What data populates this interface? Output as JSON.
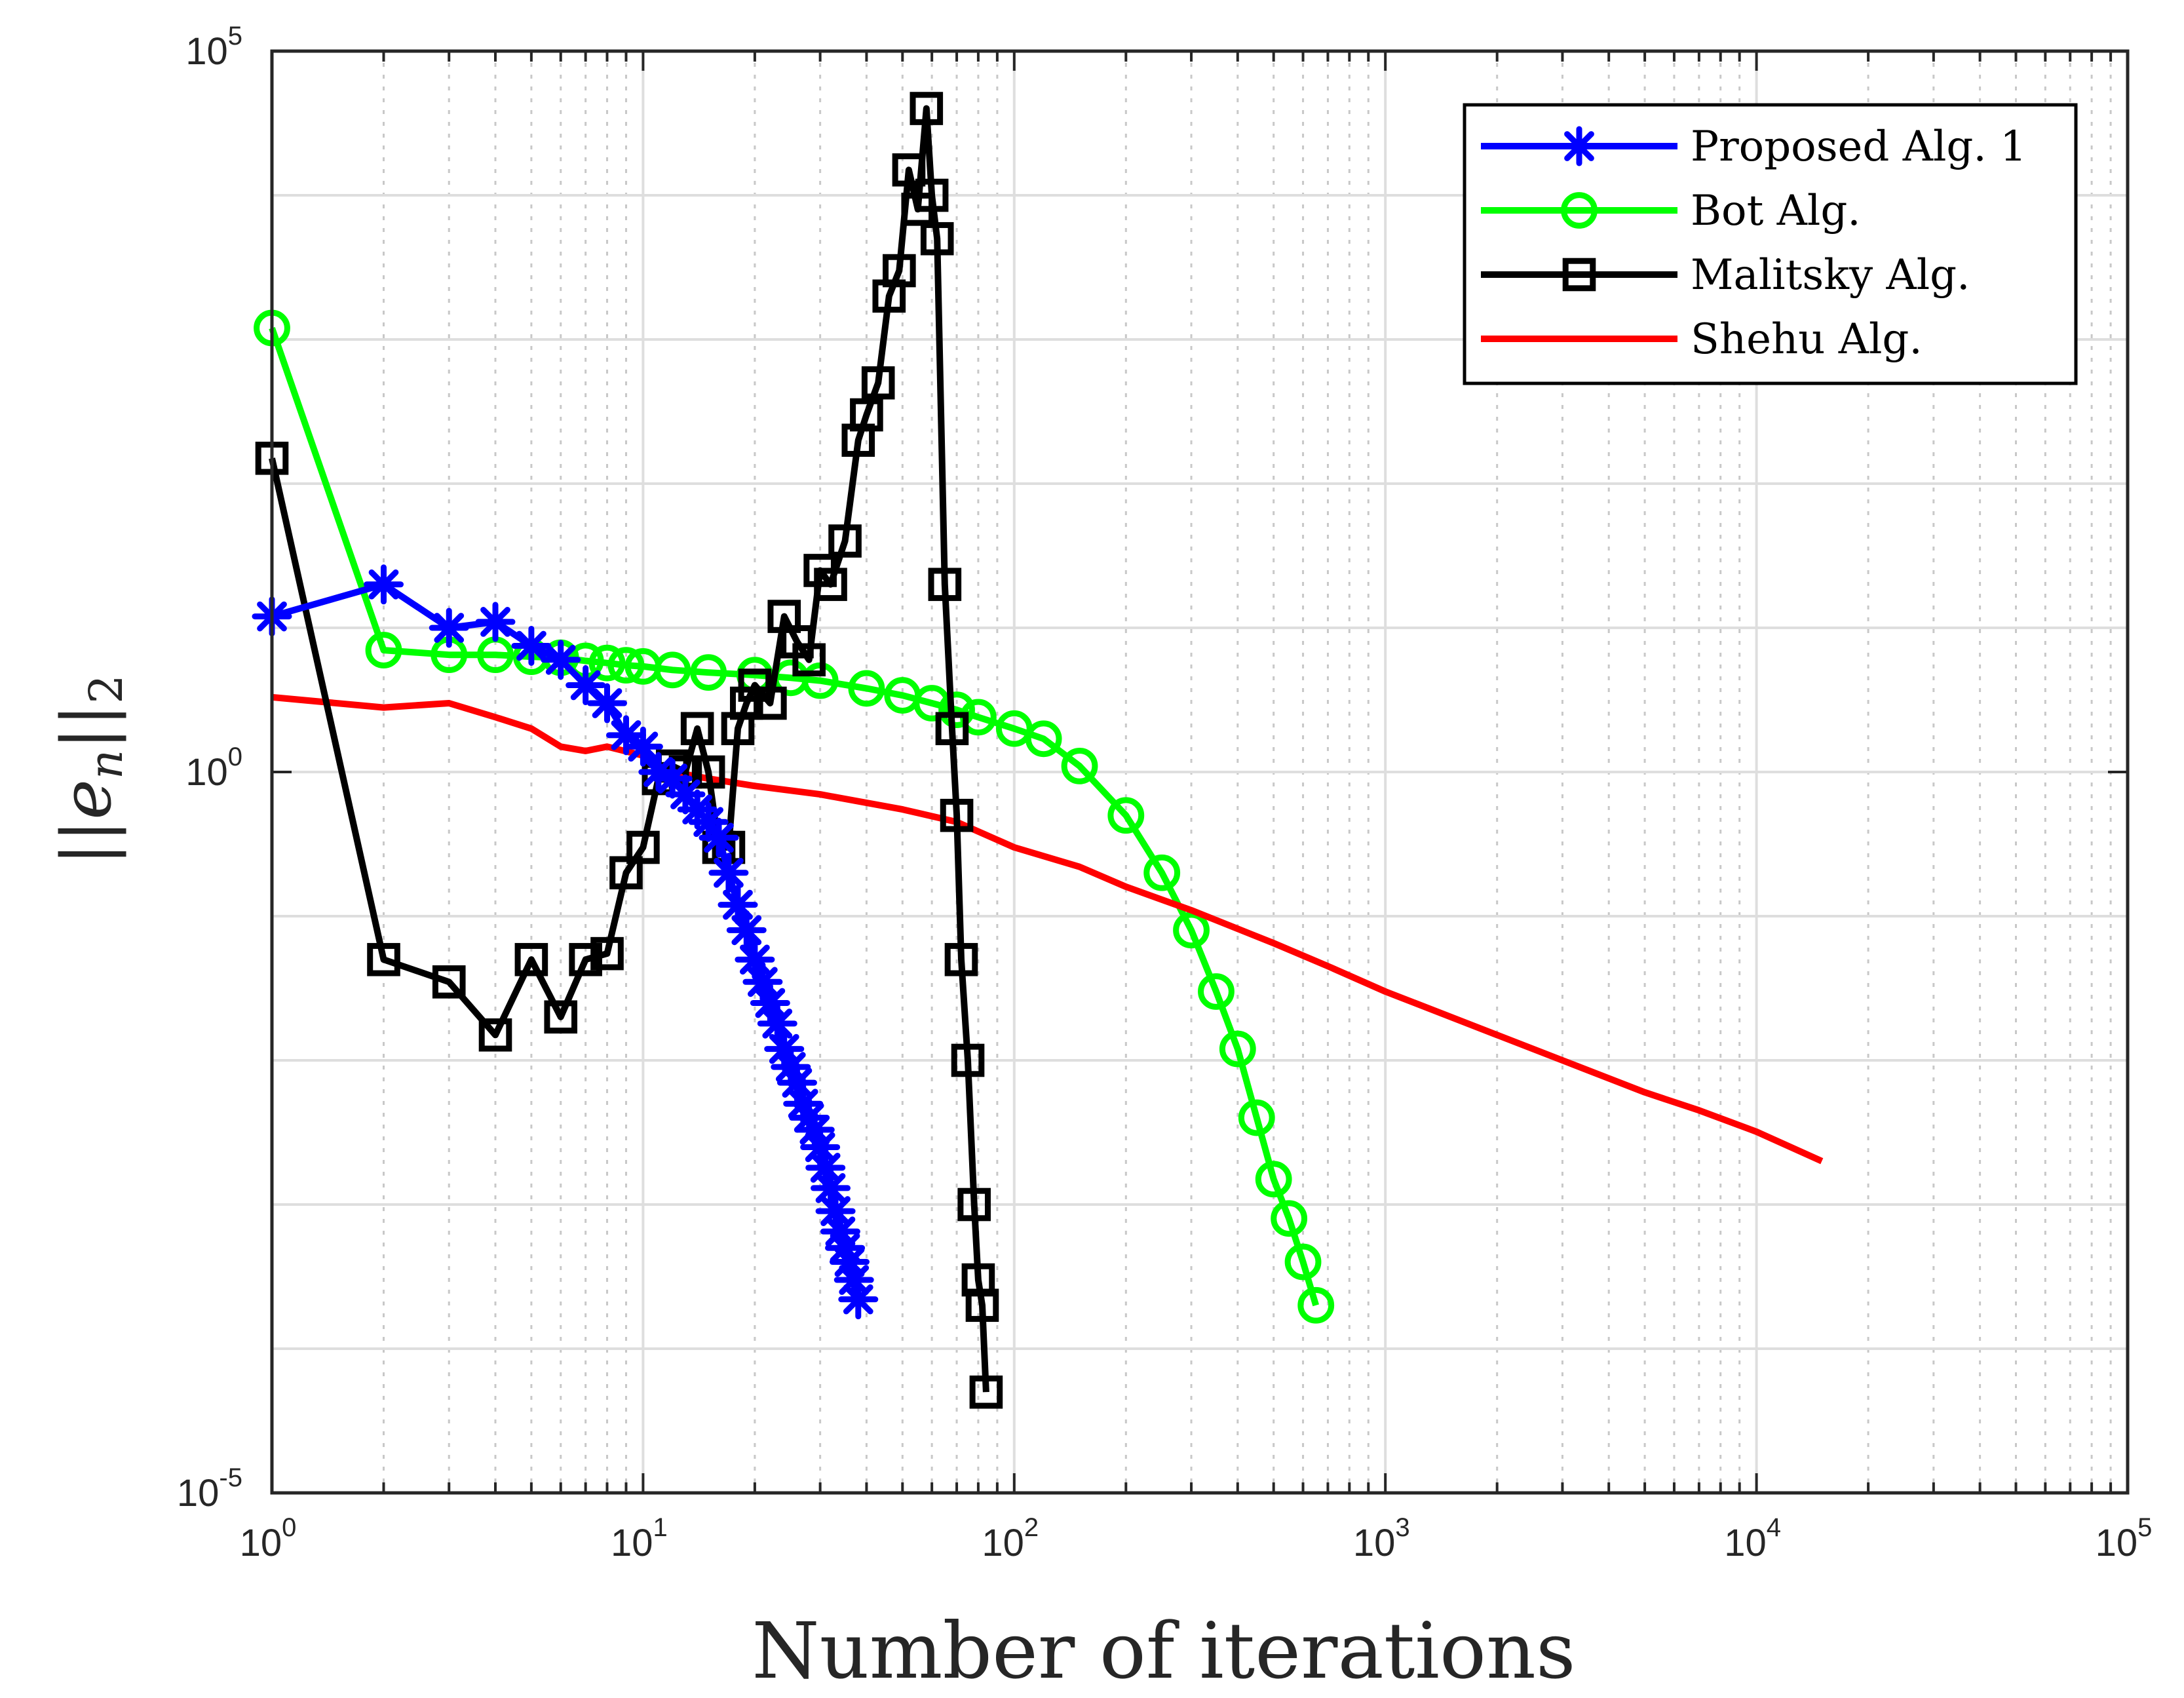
{
  "chart_data": {
    "type": "line",
    "title": "",
    "xlabel": "Number of iterations",
    "ylabel": "||e_n||_2",
    "ylabel_parts": {
      "bars_left": "||",
      "var": "e",
      "sub_n": "n",
      "bars_right": "||",
      "sub_2": "2"
    },
    "xscale": "log",
    "yscale": "log",
    "xlim": [
      1,
      100000
    ],
    "ylim": [
      1e-05,
      100000
    ],
    "grid": true,
    "legend_position": "top-right",
    "x_ticks": [
      {
        "base": "10",
        "exp": "0",
        "value": 1
      },
      {
        "base": "10",
        "exp": "1",
        "value": 10
      },
      {
        "base": "10",
        "exp": "2",
        "value": 100
      },
      {
        "base": "10",
        "exp": "3",
        "value": 1000
      },
      {
        "base": "10",
        "exp": "4",
        "value": 10000
      },
      {
        "base": "10",
        "exp": "5",
        "value": 100000
      }
    ],
    "y_ticks": [
      {
        "base": "10",
        "exp": "-5",
        "value": 1e-05
      },
      {
        "base": "10",
        "exp": "0",
        "value": 1
      },
      {
        "base": "10",
        "exp": "5",
        "value": 100000
      }
    ],
    "series": [
      {
        "name": "Proposed Alg. 1",
        "color": "#0000ff",
        "marker": "asterisk",
        "points": [
          [
            1,
            12
          ],
          [
            2,
            20
          ],
          [
            3,
            10
          ],
          [
            4,
            11
          ],
          [
            5,
            7.5
          ],
          [
            6,
            6
          ],
          [
            7,
            4
          ],
          [
            8,
            3
          ],
          [
            9,
            1.8
          ],
          [
            10,
            1.5
          ],
          [
            11,
            1.0
          ],
          [
            12,
            0.9
          ],
          [
            13,
            0.7
          ],
          [
            14,
            0.55
          ],
          [
            15,
            0.45
          ],
          [
            16,
            0.35
          ],
          [
            17,
            0.2
          ],
          [
            18,
            0.12
          ],
          [
            19,
            0.08
          ],
          [
            20,
            0.05
          ],
          [
            21,
            0.035
          ],
          [
            22,
            0.025
          ],
          [
            23,
            0.018
          ],
          [
            24,
            0.012
          ],
          [
            25,
            0.009
          ],
          [
            26,
            0.007
          ],
          [
            27,
            0.005
          ],
          [
            28,
            0.004
          ],
          [
            29,
            0.0033
          ],
          [
            30,
            0.0025
          ],
          [
            31,
            0.0018
          ],
          [
            32,
            0.0013
          ],
          [
            33,
            0.0009
          ],
          [
            34,
            0.00065
          ],
          [
            35,
            0.0005
          ],
          [
            36,
            0.0004
          ],
          [
            37,
            0.0003
          ],
          [
            38,
            0.00022
          ]
        ]
      },
      {
        "name": "Bot Alg.",
        "color": "#00ff00",
        "marker": "circle",
        "points": [
          [
            1,
            1200
          ],
          [
            2,
            7
          ],
          [
            3,
            6.5
          ],
          [
            4,
            6.5
          ],
          [
            5,
            6.3
          ],
          [
            6,
            6.2
          ],
          [
            7,
            5.9
          ],
          [
            8,
            5.7
          ],
          [
            9,
            5.5
          ],
          [
            10,
            5.4
          ],
          [
            12,
            5.1
          ],
          [
            15,
            4.9
          ],
          [
            20,
            4.7
          ],
          [
            25,
            4.5
          ],
          [
            30,
            4.3
          ],
          [
            40,
            3.8
          ],
          [
            50,
            3.4
          ],
          [
            60,
            3.0
          ],
          [
            70,
            2.7
          ],
          [
            80,
            2.4
          ],
          [
            100,
            2.0
          ],
          [
            120,
            1.7
          ],
          [
            150,
            1.1
          ],
          [
            200,
            0.5
          ],
          [
            250,
            0.2
          ],
          [
            300,
            0.08
          ],
          [
            350,
            0.03
          ],
          [
            400,
            0.012
          ],
          [
            450,
            0.004
          ],
          [
            500,
            0.0015
          ],
          [
            550,
            0.0008
          ],
          [
            600,
            0.0004
          ],
          [
            650,
            0.0002
          ]
        ]
      },
      {
        "name": "Malitsky Alg.",
        "color": "#000000",
        "marker": "square",
        "points": [
          [
            1,
            150
          ],
          [
            2,
            0.05
          ],
          [
            3,
            0.035
          ],
          [
            4,
            0.015
          ],
          [
            5,
            0.05
          ],
          [
            6,
            0.02
          ],
          [
            7,
            0.05
          ],
          [
            8,
            0.055
          ],
          [
            9,
            0.2
          ],
          [
            10,
            0.3
          ],
          [
            11,
            0.9
          ],
          [
            12,
            1.1
          ],
          [
            13,
            1.0
          ],
          [
            14,
            2.0
          ],
          [
            15,
            1.0
          ],
          [
            16,
            0.3
          ],
          [
            17,
            0.3
          ],
          [
            18,
            2.0
          ],
          [
            19,
            3.0
          ],
          [
            20,
            4.0
          ],
          [
            22,
            3.0
          ],
          [
            24,
            12
          ],
          [
            26,
            8
          ],
          [
            28,
            6
          ],
          [
            30,
            25
          ],
          [
            32,
            20
          ],
          [
            35,
            40
          ],
          [
            38,
            200
          ],
          [
            40,
            300
          ],
          [
            43,
            500
          ],
          [
            46,
            2000
          ],
          [
            49,
            3000
          ],
          [
            52,
            15000
          ],
          [
            55,
            8000
          ],
          [
            58,
            40000
          ],
          [
            60,
            10000
          ],
          [
            62,
            5000
          ],
          [
            65,
            20
          ],
          [
            68,
            2
          ],
          [
            70,
            0.5
          ],
          [
            72,
            0.05
          ],
          [
            75,
            0.01
          ],
          [
            78,
            0.001
          ],
          [
            80,
            0.0003
          ],
          [
            82,
            0.0002
          ],
          [
            84,
            5e-05
          ]
        ]
      },
      {
        "name": "Shehu Alg.",
        "color": "#ff0000",
        "marker": "none",
        "points": [
          [
            1,
            3.3
          ],
          [
            2,
            2.8
          ],
          [
            3,
            3.0
          ],
          [
            4,
            2.4
          ],
          [
            5,
            2.0
          ],
          [
            6,
            1.5
          ],
          [
            7,
            1.4
          ],
          [
            8,
            1.5
          ],
          [
            10,
            1.3
          ],
          [
            12,
            1.0
          ],
          [
            15,
            0.9
          ],
          [
            20,
            0.8
          ],
          [
            30,
            0.7
          ],
          [
            50,
            0.55
          ],
          [
            70,
            0.45
          ],
          [
            100,
            0.3
          ],
          [
            150,
            0.22
          ],
          [
            200,
            0.16
          ],
          [
            300,
            0.11
          ],
          [
            500,
            0.065
          ],
          [
            700,
            0.045
          ],
          [
            1000,
            0.03
          ],
          [
            2000,
            0.015
          ],
          [
            3000,
            0.01
          ],
          [
            5000,
            0.006
          ],
          [
            7000,
            0.0045
          ],
          [
            10000,
            0.0032
          ],
          [
            15000,
            0.002
          ]
        ]
      }
    ]
  }
}
